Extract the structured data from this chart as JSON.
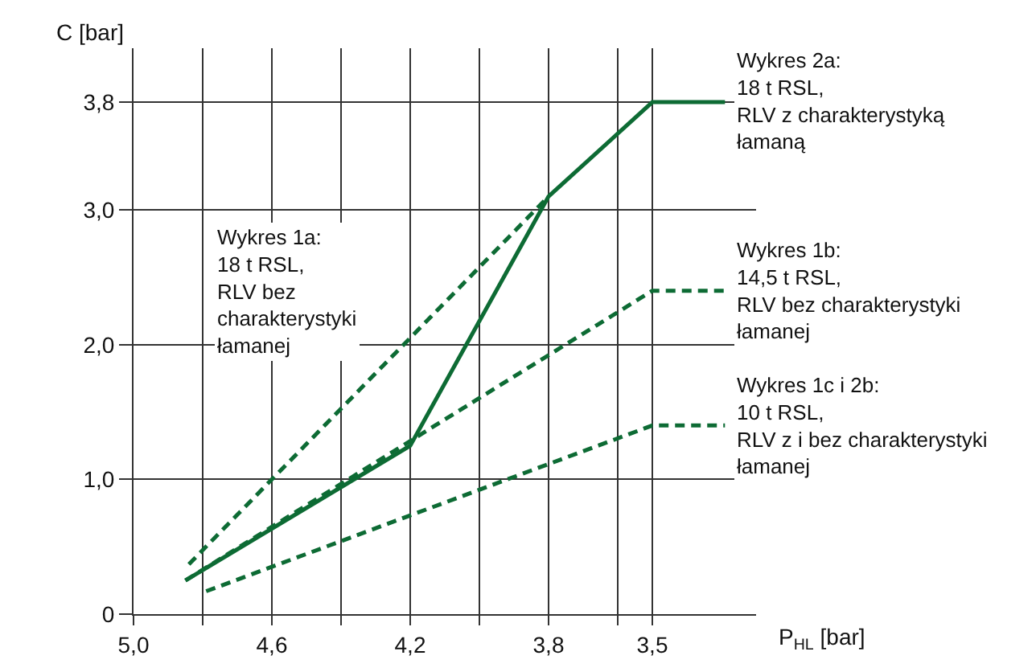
{
  "chart_data": {
    "type": "line",
    "xlabel": "P$_{HL}$ [bar]",
    "ylabel": "C [bar]",
    "xlim": [
      5.0,
      3.2
    ],
    "ylim": [
      0,
      4.2
    ],
    "xticks": [
      {
        "value": 5.0,
        "label": "5,0"
      },
      {
        "value": 4.8,
        "label": null
      },
      {
        "value": 4.6,
        "label": "4,6"
      },
      {
        "value": 4.4,
        "label": null
      },
      {
        "value": 4.2,
        "label": "4,2"
      },
      {
        "value": 4.0,
        "label": null
      },
      {
        "value": 3.8,
        "label": "3,8"
      },
      {
        "value": 3.6,
        "label": null
      },
      {
        "value": 3.5,
        "label": "3,5"
      }
    ],
    "yticks": [
      0,
      {
        "value": 1,
        "label": "1,0"
      },
      {
        "value": 2,
        "label": "2,0"
      },
      {
        "value": 3,
        "label": "3,0"
      },
      {
        "value": 3.8,
        "label": "3,8"
      }
    ],
    "grid": true,
    "marker": "none",
    "series": [
      {
        "color": "#0d6b34",
        "line_style": "solid",
        "x": [
          4.85,
          4.2,
          3.8,
          3.5,
          3.29
        ],
        "values": [
          0.25,
          1.25,
          3.1,
          3.8,
          3.8
        ]
      },
      {
        "color": "#0d6b34",
        "line_style": "dashed",
        "x": [
          4.84,
          3.8
        ],
        "values": [
          0.37,
          3.1
        ]
      },
      {
        "color": "#0d6b34",
        "line_style": "dashed",
        "x": [
          4.85,
          3.5,
          3.29
        ],
        "values": [
          0.25,
          2.4,
          2.4
        ]
      },
      {
        "color": "#0d6b34",
        "line_style": "dashed",
        "x": [
          4.79,
          3.5,
          3.29
        ],
        "values": [
          0.17,
          1.4,
          1.4
        ]
      }
    ],
    "annotations": [
      "Wykres 1a:\n18 t RSL,\nRLV bez\ncharakterystyki\nłamanej",
      "Wykres 2a:\n18 t RSL,\nRLV z charakterystyką\nłamaną",
      "Wykres 1b:\n14,5 t RSL,\nRLV bez charakterystyki\nłamanej",
      "Wykres 1c i 2b:\n10 t RSL,\nRLV z i bez charakterystyki\nłamanej"
    ]
  }
}
